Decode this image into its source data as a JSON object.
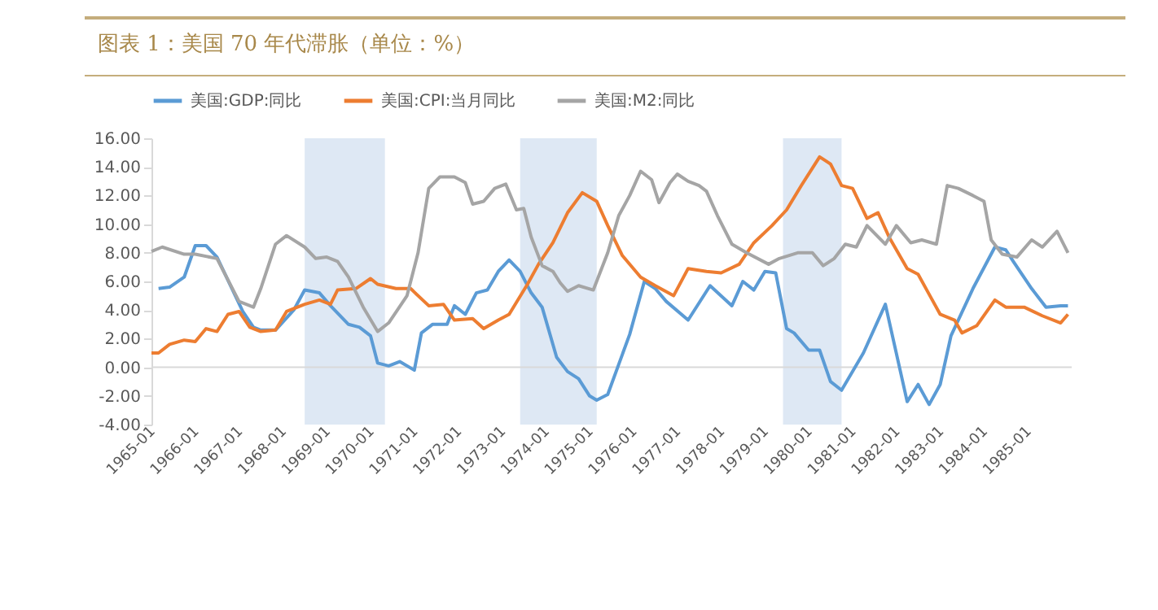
{
  "chart_data": {
    "type": "line",
    "title": "图表 1：美国 70 年代滞胀（单位：%）",
    "xlim": [
      "1965-01",
      "1986-01"
    ],
    "xticks": [
      "1965-01",
      "1966-01",
      "1967-01",
      "1968-01",
      "1969-01",
      "1970-01",
      "1971-01",
      "1972-01",
      "1973-01",
      "1974-01",
      "1975-01",
      "1976-01",
      "1977-01",
      "1978-01",
      "1979-01",
      "1980-01",
      "1981-01",
      "1982-01",
      "1983-01",
      "1984-01",
      "1985-01"
    ],
    "ylim": [
      -4,
      16
    ],
    "yticks": [
      {
        "value": -4,
        "label": "-4.00"
      },
      {
        "value": -2,
        "label": "-2.00"
      },
      {
        "value": 0,
        "label": "0.00"
      },
      {
        "value": 2,
        "label": "2.00"
      },
      {
        "value": 4,
        "label": "4.00"
      },
      {
        "value": 6,
        "label": "6.00"
      },
      {
        "value": 8,
        "label": "8.00"
      },
      {
        "value": 10,
        "label": "10.00"
      },
      {
        "value": 12,
        "label": "12.00"
      },
      {
        "value": 14,
        "label": "14.00"
      },
      {
        "value": 16,
        "label": "16.00"
      }
    ],
    "legend": "top",
    "grid": false,
    "ref_lines": [
      {
        "axis": "y",
        "value": 0,
        "color": "#d9d9d9"
      }
    ],
    "bands": [
      {
        "axis": "x",
        "from": "1968-07",
        "to": "1970-05",
        "color": "#dae5f3"
      },
      {
        "axis": "x",
        "from": "1973-06",
        "to": "1975-03",
        "color": "#dae5f3"
      },
      {
        "axis": "x",
        "from": "1979-06",
        "to": "1980-10",
        "color": "#dae5f3"
      }
    ],
    "series": [
      {
        "name": "美国:GDP:同比",
        "color": "#5b9bd5",
        "x": [
          "1965-03",
          "1965-06",
          "1965-10",
          "1966-01",
          "1966-04",
          "1966-07",
          "1967-02",
          "1967-05",
          "1967-07",
          "1967-11",
          "1968-04",
          "1968-07",
          "1968-11",
          "1969-02",
          "1969-07",
          "1969-10",
          "1970-01",
          "1970-03",
          "1970-06",
          "1970-09",
          "1971-01",
          "1971-03",
          "1971-06",
          "1971-10",
          "1971-12",
          "1972-03",
          "1972-06",
          "1972-09",
          "1972-12",
          "1973-03",
          "1973-06",
          "1973-09",
          "1973-12",
          "1974-04",
          "1974-07",
          "1974-10",
          "1975-01",
          "1975-03",
          "1975-06",
          "1975-12",
          "1976-04",
          "1976-07",
          "1976-10",
          "1977-04",
          "1977-10",
          "1978-04",
          "1978-07",
          "1978-10",
          "1979-01",
          "1979-04",
          "1979-07",
          "1979-09",
          "1980-01",
          "1980-04",
          "1980-07",
          "1980-10",
          "1981-04",
          "1981-10",
          "1982-04",
          "1982-07",
          "1982-10",
          "1983-01",
          "1983-04",
          "1983-10",
          "1984-04",
          "1984-07",
          "1984-09",
          "1985-02",
          "1985-06",
          "1985-10",
          "1985-12"
        ],
        "values": [
          5.5,
          5.6,
          6.3,
          8.5,
          8.5,
          7.7,
          3.9,
          2.8,
          2.6,
          2.6,
          4.0,
          5.4,
          5.2,
          4.3,
          3.0,
          2.8,
          2.2,
          0.3,
          0.1,
          0.4,
          -0.2,
          2.4,
          3.0,
          3.0,
          4.3,
          3.7,
          5.2,
          5.4,
          6.7,
          7.5,
          6.7,
          5.2,
          4.2,
          0.7,
          -0.3,
          -0.8,
          -2.0,
          -2.3,
          -1.9,
          2.3,
          6.0,
          5.5,
          4.6,
          3.3,
          5.7,
          4.3,
          6.0,
          5.4,
          6.7,
          6.6,
          2.7,
          2.4,
          1.2,
          1.2,
          -1.0,
          -1.6,
          1.0,
          4.4,
          -2.4,
          -1.2,
          -2.6,
          -1.2,
          2.2,
          5.5,
          8.4,
          8.2,
          7.4,
          5.5,
          4.2,
          4.3,
          4.3
        ]
      },
      {
        "name": "美国:CPI:当月同比",
        "color": "#ed7d31",
        "x": [
          "1965-01",
          "1965-03",
          "1965-06",
          "1965-10",
          "1966-01",
          "1966-04",
          "1966-07",
          "1966-10",
          "1967-01",
          "1967-04",
          "1967-07",
          "1967-11",
          "1968-02",
          "1968-07",
          "1968-11",
          "1969-02",
          "1969-04",
          "1969-09",
          "1970-01",
          "1970-03",
          "1970-08",
          "1970-12",
          "1971-05",
          "1971-09",
          "1971-12",
          "1972-05",
          "1972-08",
          "1972-12",
          "1973-03",
          "1973-08",
          "1973-11",
          "1974-03",
          "1974-07",
          "1974-11",
          "1975-03",
          "1975-06",
          "1975-10",
          "1976-03",
          "1976-07",
          "1976-12",
          "1977-04",
          "1977-09",
          "1978-01",
          "1978-06",
          "1978-10",
          "1979-03",
          "1979-07",
          "1979-11",
          "1980-04",
          "1980-07",
          "1980-10",
          "1981-01",
          "1981-05",
          "1981-08",
          "1981-11",
          "1982-04",
          "1982-07",
          "1982-10",
          "1983-01",
          "1983-05",
          "1983-07",
          "1983-11",
          "1984-04",
          "1984-07",
          "1984-12",
          "1985-05",
          "1985-10",
          "1985-12"
        ],
        "values": [
          1.0,
          1.0,
          1.6,
          1.9,
          1.8,
          2.7,
          2.5,
          3.7,
          3.9,
          2.8,
          2.5,
          2.6,
          3.9,
          4.4,
          4.7,
          4.4,
          5.4,
          5.5,
          6.2,
          5.8,
          5.5,
          5.5,
          4.3,
          4.4,
          3.3,
          3.4,
          2.7,
          3.3,
          3.7,
          5.8,
          7.2,
          8.7,
          10.8,
          12.2,
          11.6,
          9.9,
          7.8,
          6.3,
          5.7,
          5.0,
          6.9,
          6.7,
          6.6,
          7.2,
          8.7,
          9.9,
          11.0,
          12.7,
          14.7,
          14.2,
          12.7,
          12.5,
          10.4,
          10.8,
          9.1,
          6.9,
          6.5,
          5.1,
          3.7,
          3.3,
          2.4,
          2.9,
          4.7,
          4.2,
          4.2,
          3.6,
          3.1,
          3.7
        ]
      },
      {
        "name": "美国:M2:同比",
        "color": "#a5a5a5",
        "x": [
          "1965-01",
          "1965-04",
          "1965-10",
          "1966-01",
          "1966-07",
          "1967-01",
          "1967-05",
          "1967-07",
          "1967-11",
          "1968-02",
          "1968-07",
          "1968-10",
          "1969-01",
          "1969-04",
          "1969-07",
          "1969-11",
          "1970-03",
          "1970-06",
          "1970-11",
          "1971-02",
          "1971-05",
          "1971-08",
          "1971-12",
          "1972-03",
          "1972-05",
          "1972-08",
          "1972-11",
          "1973-02",
          "1973-05",
          "1973-07",
          "1973-09",
          "1973-12",
          "1974-03",
          "1974-05",
          "1974-07",
          "1974-10",
          "1975-02",
          "1975-06",
          "1975-09",
          "1975-12",
          "1976-03",
          "1976-06",
          "1976-08",
          "1976-11",
          "1977-01",
          "1977-04",
          "1977-07",
          "1977-09",
          "1977-12",
          "1978-04",
          "1978-08",
          "1979-02",
          "1979-05",
          "1979-10",
          "1980-02",
          "1980-05",
          "1980-08",
          "1980-11",
          "1981-02",
          "1981-05",
          "1981-10",
          "1982-01",
          "1982-05",
          "1982-08",
          "1982-12",
          "1983-03",
          "1983-06",
          "1983-10",
          "1984-01",
          "1984-03",
          "1984-06",
          "1984-10",
          "1985-02",
          "1985-05",
          "1985-09",
          "1985-12"
        ],
        "values": [
          8.1,
          8.4,
          7.9,
          7.9,
          7.6,
          4.6,
          4.2,
          5.5,
          8.6,
          9.2,
          8.4,
          7.6,
          7.7,
          7.4,
          6.3,
          4.2,
          2.5,
          3.1,
          5.0,
          8.0,
          12.5,
          13.3,
          13.3,
          12.9,
          11.4,
          11.6,
          12.5,
          12.8,
          11.0,
          11.1,
          9.1,
          7.1,
          6.7,
          5.9,
          5.3,
          5.7,
          5.4,
          8.0,
          10.6,
          12.0,
          13.7,
          13.1,
          11.5,
          12.9,
          13.5,
          13.0,
          12.7,
          12.3,
          10.6,
          8.6,
          8.0,
          7.2,
          7.6,
          8.0,
          8.0,
          7.1,
          7.6,
          8.6,
          8.4,
          9.9,
          8.6,
          9.9,
          8.7,
          8.9,
          8.6,
          12.7,
          12.5,
          12.0,
          11.6,
          8.9,
          7.9,
          7.7,
          8.9,
          8.4,
          9.5,
          8.0
        ]
      }
    ]
  }
}
